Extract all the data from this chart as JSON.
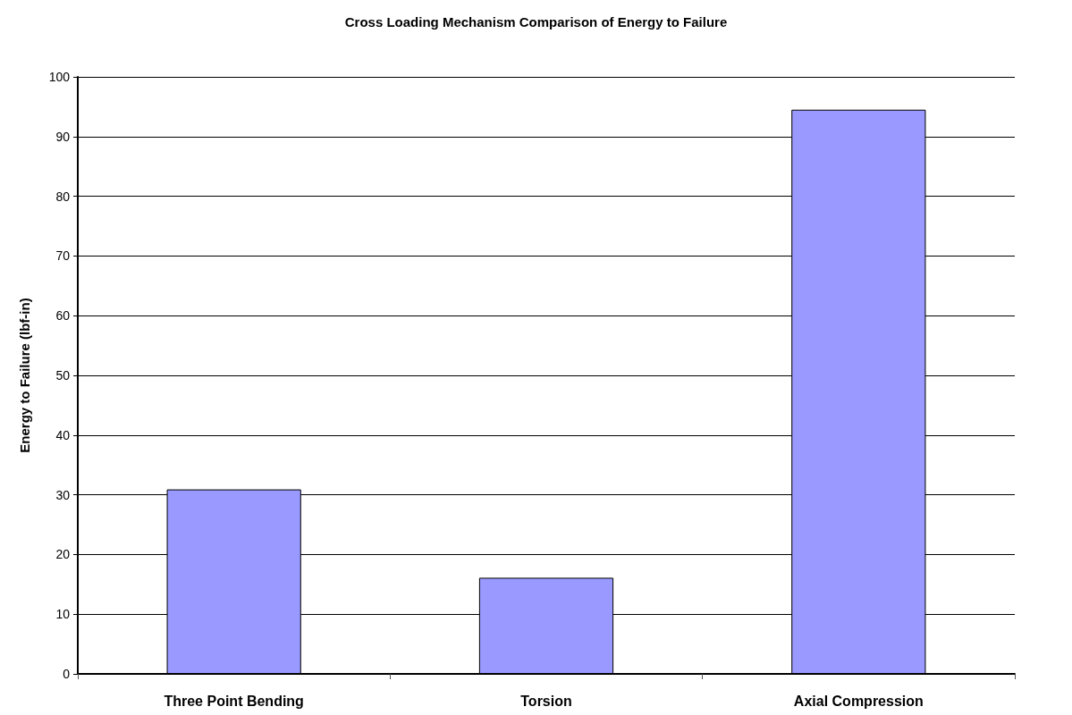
{
  "chart_data": {
    "type": "bar",
    "title": "Cross Loading Mechanism Comparison of Energy to Failure",
    "ylabel": "Energy to Failure (lbf-in)",
    "categories": [
      "Three Point Bending",
      "Torsion",
      "Axial Compression"
    ],
    "values": [
      30.9,
      16.1,
      94.5
    ],
    "color": "#9999ff",
    "ylim": [
      0,
      100
    ],
    "yticks": [
      0,
      10,
      20,
      30,
      40,
      50,
      60,
      70,
      80,
      90,
      100
    ],
    "grid": "y"
  }
}
